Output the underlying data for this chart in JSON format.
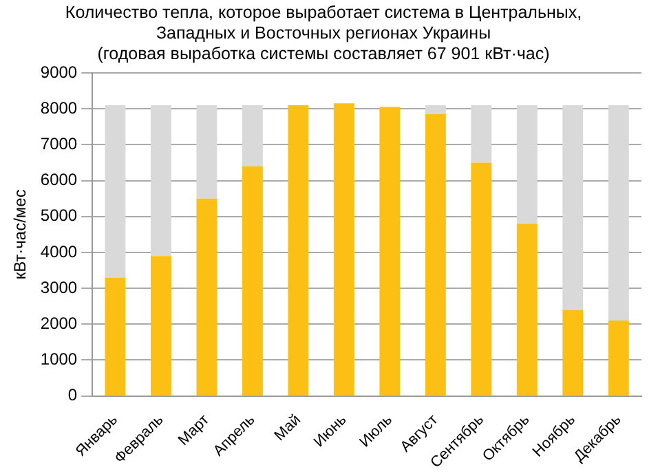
{
  "chart_data": {
    "type": "bar",
    "stacked": true,
    "title": [
      "Количество тепла, которое выработает система в Центральных,",
      "Западных и Восточных регионах Украины",
      "(годовая выработка системы составляет 67 901 кВт·час)"
    ],
    "ylabel": "кВт·час/мес",
    "categories": [
      "Январь",
      "Февраль",
      "Март",
      "Апрель",
      "Май",
      "Июнь",
      "Июль",
      "Август",
      "Сентябрь",
      "Октябрь",
      "Ноябрь",
      "Декабрь"
    ],
    "series": [
      {
        "color": "#fcc014",
        "values": [
          3300,
          3900,
          5500,
          6400,
          8100,
          8150,
          8050,
          7850,
          6500,
          4800,
          2400,
          2100
        ]
      },
      {
        "color": "#d9d9d9",
        "values": [
          4800,
          4200,
          2600,
          1700,
          0,
          0,
          0,
          250,
          1600,
          3300,
          5700,
          6000
        ]
      }
    ],
    "ylim": [
      0,
      9000
    ],
    "yticks": [
      0,
      1000,
      2000,
      3000,
      4000,
      5000,
      6000,
      7000,
      8000,
      9000
    ],
    "grid": "y",
    "legend": false
  }
}
